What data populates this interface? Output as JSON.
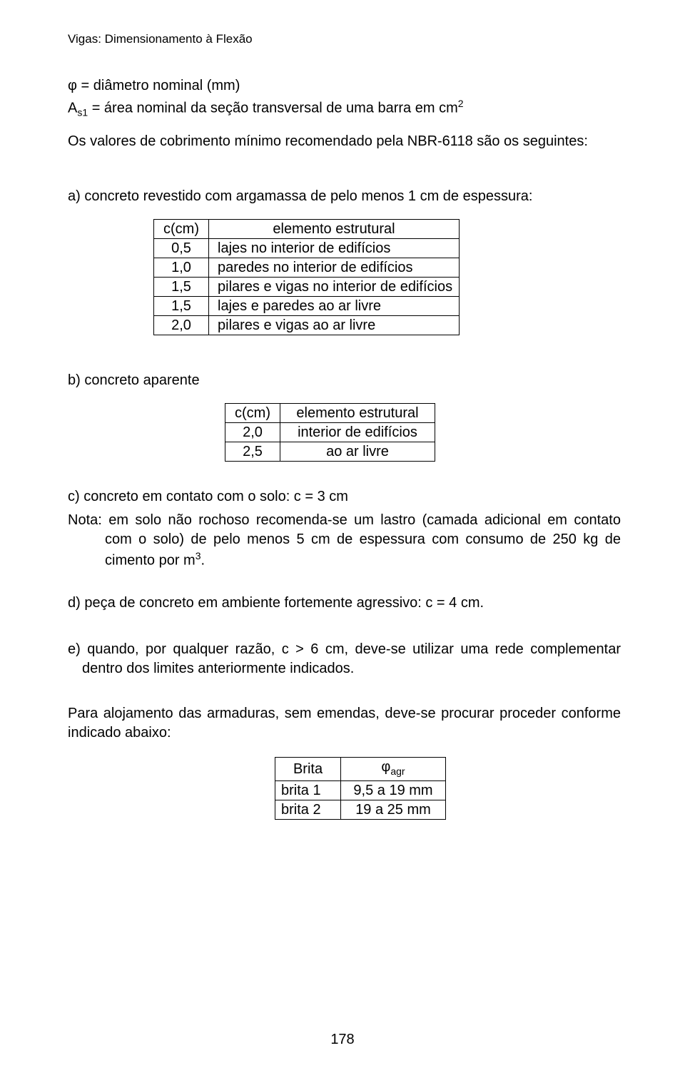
{
  "header": "Vigas: Dimensionamento à Flexão",
  "defs": {
    "line1_pre": "φ = ",
    "line1": "diâmetro nominal (mm)",
    "line2_pre": "A",
    "line2_sub": "s1",
    "line2_mid": " = área nominal da seção transversal de uma barra em cm",
    "line2_sup": "2"
  },
  "intro": "Os valores de cobrimento mínimo recomendado pela NBR-6118 são os seguintes:",
  "section_a": "a) concreto revestido com argamassa de pelo menos 1 cm de espessura:",
  "table1": {
    "col1_header": "c(cm)",
    "col2_header": "elemento estrutural",
    "rows": [
      {
        "c": "0,5",
        "e": "lajes no interior de edifícios"
      },
      {
        "c": "1,0",
        "e": "paredes no interior de edifícios"
      },
      {
        "c": "1,5",
        "e": "pilares e vigas no interior de edifícios"
      },
      {
        "c": "1,5",
        "e": "lajes e paredes ao ar livre"
      },
      {
        "c": "2,0",
        "e": "pilares e vigas ao ar livre"
      }
    ]
  },
  "section_b": "b) concreto aparente",
  "table2": {
    "col1_header": "c(cm)",
    "col2_header": "elemento estrutural",
    "rows": [
      {
        "c": "2,0",
        "e": "interior de edifícios"
      },
      {
        "c": "2,5",
        "e": "ao ar livre"
      }
    ]
  },
  "section_c": "c) concreto em contato com o solo: c = 3 cm",
  "nota_pre": "Nota: em solo não rochoso recomenda-se um lastro (camada adicional em contato com o solo) de pelo menos 5 cm de espessura com consumo de 250 kg de cimento por m",
  "nota_sup": "3",
  "nota_post": ".",
  "section_d": "d) peça de concreto em ambiente fortemente agressivo: c = 4 cm.",
  "section_e": "e) quando, por qualquer razão, c > 6 cm, deve-se utilizar uma rede complementar dentro dos limites anteriormente indicados.",
  "para_last": "Para alojamento das armaduras, sem emendas, deve-se procurar proceder conforme indicado abaixo:",
  "table3": {
    "col1_header": "Brita",
    "col2_header_pre": "φ",
    "col2_header_sub": "agr",
    "rows": [
      {
        "b": "brita 1",
        "p": "9,5 a 19 mm"
      },
      {
        "b": "brita 2",
        "p": "19 a 25 mm"
      }
    ]
  },
  "page_number": "178"
}
